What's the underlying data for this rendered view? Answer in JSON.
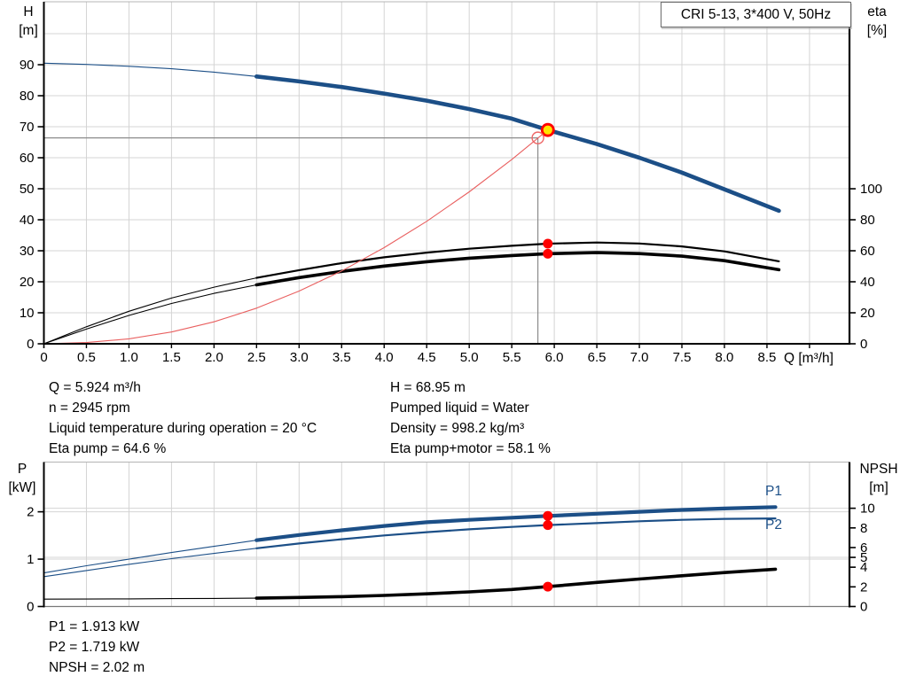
{
  "title_box": "CRI 5-13, 3*400 V, 50Hz",
  "axes": {
    "h": {
      "name": "H",
      "unit": "[m]"
    },
    "eta": {
      "name": "eta",
      "unit": "[%]"
    },
    "p": {
      "name": "P",
      "unit": "[kW]"
    },
    "npsh": {
      "name": "NPSH",
      "unit": "[m]"
    },
    "q_unit": "Q [m³/h]"
  },
  "series_labels": {
    "p1": "P1",
    "p2": "P2"
  },
  "annotations": {
    "duty_left": [
      "Q = 5.924 m³/h",
      "n = 2945 rpm",
      "Liquid temperature during operation = 20 °C",
      "Eta pump = 64.6 %"
    ],
    "duty_right": [
      "H = 68.95 m",
      "Pumped liquid = Water",
      "Density = 998.2 kg/m³",
      "Eta pump+motor = 58.1 %"
    ],
    "power": [
      "P1 = 1.913 kW",
      "P2 = 1.719 kW",
      "NPSH = 2.02 m"
    ]
  },
  "colors": {
    "pump_blue": "#1c4f87",
    "curve_black": "#000000",
    "system_red": "#e96060",
    "marker_red": "#ff0000",
    "duty_yellow": "#ffe400",
    "grid": "#d4d4d4",
    "guide": "#8c8c8c"
  },
  "chart_data": [
    {
      "id": "qh",
      "type": "line",
      "title": "CRI 5-13, 3*400 V, 50Hz",
      "x_axis": {
        "label": "Q [m³/h]",
        "range": [
          0,
          9.47
        ],
        "ticks": [
          {
            "v": 0,
            "l": "0"
          },
          {
            "v": 0.5,
            "l": "0.5"
          },
          {
            "v": 1,
            "l": "1.0"
          },
          {
            "v": 1.5,
            "l": "1.5"
          },
          {
            "v": 2,
            "l": "2.0"
          },
          {
            "v": 2.5,
            "l": "2.5"
          },
          {
            "v": 3,
            "l": "3.0"
          },
          {
            "v": 3.5,
            "l": "3.5"
          },
          {
            "v": 4,
            "l": "4.0"
          },
          {
            "v": 4.5,
            "l": "4.5"
          },
          {
            "v": 5,
            "l": "5.0"
          },
          {
            "v": 5.5,
            "l": "5.5"
          },
          {
            "v": 6,
            "l": "6.0"
          },
          {
            "v": 6.5,
            "l": "6.5"
          },
          {
            "v": 7,
            "l": "7.0"
          },
          {
            "v": 7.5,
            "l": "7.5"
          },
          {
            "v": 8,
            "l": "8.0"
          },
          {
            "v": 8.5,
            "l": "8.5"
          },
          {
            "v": 9,
            "l": ""
          }
        ]
      },
      "y_left": {
        "label": "H [m]",
        "range": [
          0,
          110.3
        ],
        "ticks": [
          {
            "v": 0,
            "l": "0"
          },
          {
            "v": 10,
            "l": "10"
          },
          {
            "v": 20,
            "l": "20"
          },
          {
            "v": 30,
            "l": "30"
          },
          {
            "v": 40,
            "l": "40"
          },
          {
            "v": 50,
            "l": "50"
          },
          {
            "v": 60,
            "l": "60"
          },
          {
            "v": 70,
            "l": "70"
          },
          {
            "v": 80,
            "l": "80"
          },
          {
            "v": 90,
            "l": "90"
          }
        ],
        "gridlines": [
          10,
          20,
          30,
          40,
          50,
          60,
          70,
          80,
          90,
          100
        ]
      },
      "y_right": {
        "label": "eta [%]",
        "range": [
          0,
          220.6
        ],
        "ticks": [
          {
            "v": 0,
            "l": "0"
          },
          {
            "v": 20,
            "l": "20"
          },
          {
            "v": 40,
            "l": "40"
          },
          {
            "v": 60,
            "l": "60"
          },
          {
            "v": 80,
            "l": "80"
          },
          {
            "v": 100,
            "l": "100"
          }
        ],
        "gridlines": []
      },
      "guides": {
        "q": 5.807,
        "h": 66.4
      },
      "series": [
        {
          "name": "pump-curve-h",
          "axis": "left",
          "color": "#1c4f87",
          "width": 4.6,
          "thin_until": 2.5,
          "points": [
            [
              0,
              90.5
            ],
            [
              0.5,
              90.1
            ],
            [
              1,
              89.5
            ],
            [
              1.5,
              88.7
            ],
            [
              2,
              87.6
            ],
            [
              2.5,
              86.2
            ],
            [
              3,
              84.6
            ],
            [
              3.5,
              82.8
            ],
            [
              4,
              80.7
            ],
            [
              4.5,
              78.4
            ],
            [
              5,
              75.7
            ],
            [
              5.5,
              72.6
            ],
            [
              5.924,
              68.95
            ],
            [
              6.5,
              64.4
            ],
            [
              7,
              60.0
            ],
            [
              7.5,
              55.2
            ],
            [
              8,
              49.8
            ],
            [
              8.64,
              42.9
            ]
          ]
        },
        {
          "name": "eta-pump",
          "axis": "right",
          "color": "#000000",
          "width": 2.2,
          "thin_until": 2.5,
          "points": [
            [
              0,
              0
            ],
            [
              0.5,
              11
            ],
            [
              1,
              21
            ],
            [
              1.5,
              29.5
            ],
            [
              2,
              36.5
            ],
            [
              2.5,
              42.5
            ],
            [
              3,
              47.5
            ],
            [
              3.5,
              52
            ],
            [
              4,
              55.8
            ],
            [
              4.5,
              58.8
            ],
            [
              5,
              61.3
            ],
            [
              5.5,
              63.2
            ],
            [
              5.924,
              64.6
            ],
            [
              6.5,
              65.3
            ],
            [
              7,
              64.7
            ],
            [
              7.5,
              62.8
            ],
            [
              8,
              59.6
            ],
            [
              8.64,
              53.2
            ]
          ]
        },
        {
          "name": "eta-pump-motor",
          "axis": "right",
          "color": "#000000",
          "width": 3.6,
          "thin_until": 2.5,
          "points": [
            [
              0,
              0
            ],
            [
              0.5,
              9.5
            ],
            [
              1,
              18.3
            ],
            [
              1.5,
              26
            ],
            [
              2,
              32.5
            ],
            [
              2.5,
              38
            ],
            [
              3,
              42.7
            ],
            [
              3.5,
              46.7
            ],
            [
              4,
              50.1
            ],
            [
              4.5,
              52.9
            ],
            [
              5,
              55.2
            ],
            [
              5.5,
              56.9
            ],
            [
              5.924,
              58.1
            ],
            [
              6.5,
              58.8
            ],
            [
              7,
              58.2
            ],
            [
              7.5,
              56.5
            ],
            [
              8,
              53.6
            ],
            [
              8.64,
              47.8
            ]
          ]
        },
        {
          "name": "system-curve",
          "axis": "left",
          "color": "#e96060",
          "width": 1.1,
          "points": [
            [
              0,
              0
            ],
            [
              0.5,
              0.4
            ],
            [
              1,
              1.6
            ],
            [
              1.5,
              3.8
            ],
            [
              2,
              7.1
            ],
            [
              2.5,
              11.5
            ],
            [
              3,
              17
            ],
            [
              3.5,
              23.5
            ],
            [
              4,
              31
            ],
            [
              4.5,
              39.5
            ],
            [
              5,
              49
            ],
            [
              5.5,
              59.4
            ],
            [
              5.924,
              68.95
            ]
          ]
        }
      ],
      "markers": [
        {
          "name": "duty-point",
          "shape": "duty",
          "axis": "left",
          "q": 5.924,
          "v": 68.95,
          "fill": "#ffe400",
          "stroke": "#ff0000"
        },
        {
          "name": "requested-duty-ring",
          "shape": "ring",
          "axis": "left",
          "q": 5.807,
          "v": 66.4,
          "stroke": "#ee6666"
        },
        {
          "name": "eta-pump-dot",
          "shape": "dot",
          "axis": "right",
          "q": 5.924,
          "v": 64.6,
          "fill": "#ff0000"
        },
        {
          "name": "eta-pump-motor-dot",
          "shape": "dot",
          "axis": "right",
          "q": 5.924,
          "v": 58.1,
          "fill": "#ff0000"
        }
      ]
    },
    {
      "id": "power",
      "type": "line",
      "x_axis": {
        "label": "",
        "range": [
          0,
          9.47
        ],
        "ticks": [
          {
            "v": 0.5,
            "l": ""
          },
          {
            "v": 1,
            "l": ""
          },
          {
            "v": 1.5,
            "l": ""
          },
          {
            "v": 2,
            "l": ""
          },
          {
            "v": 2.5,
            "l": ""
          },
          {
            "v": 3,
            "l": ""
          },
          {
            "v": 3.5,
            "l": ""
          },
          {
            "v": 4,
            "l": ""
          },
          {
            "v": 4.5,
            "l": ""
          },
          {
            "v": 5,
            "l": ""
          },
          {
            "v": 5.5,
            "l": ""
          },
          {
            "v": 6,
            "l": ""
          },
          {
            "v": 6.5,
            "l": ""
          },
          {
            "v": 7,
            "l": ""
          },
          {
            "v": 7.5,
            "l": ""
          },
          {
            "v": 8,
            "l": ""
          },
          {
            "v": 8.5,
            "l": ""
          },
          {
            "v": 9,
            "l": ""
          }
        ]
      },
      "y_left": {
        "label": "P [kW]",
        "range": [
          0,
          3.05
        ],
        "ticks": [
          {
            "v": 0,
            "l": "0"
          },
          {
            "v": 1,
            "l": "1"
          },
          {
            "v": 2,
            "l": "2"
          }
        ],
        "gridlines": [
          1,
          2
        ]
      },
      "y_right": {
        "label": "NPSH [m]",
        "range": [
          0,
          14.7
        ],
        "ticks": [
          {
            "v": 0,
            "l": "0"
          },
          {
            "v": 2,
            "l": "2"
          },
          {
            "v": 4,
            "l": "4"
          },
          {
            "v": 5,
            "l": "5"
          },
          {
            "v": 6,
            "l": "6"
          },
          {
            "v": 8,
            "l": "8"
          },
          {
            "v": 10,
            "l": "10"
          }
        ],
        "gridlines": [
          5,
          10
        ]
      },
      "series": [
        {
          "name": "p1-curve",
          "axis": "left",
          "color": "#1c4f87",
          "width": 4.2,
          "thin_until": 2.5,
          "points": [
            [
              0,
              0.71
            ],
            [
              0.5,
              0.86
            ],
            [
              1,
              1.0
            ],
            [
              1.5,
              1.14
            ],
            [
              2,
              1.27
            ],
            [
              2.5,
              1.4
            ],
            [
              3,
              1.51
            ],
            [
              3.5,
              1.61
            ],
            [
              4,
              1.7
            ],
            [
              4.5,
              1.78
            ],
            [
              5,
              1.83
            ],
            [
              5.5,
              1.875
            ],
            [
              5.924,
              1.913
            ],
            [
              6.5,
              1.96
            ],
            [
              7,
              2.0
            ],
            [
              7.5,
              2.04
            ],
            [
              8,
              2.07
            ],
            [
              8.6,
              2.1
            ]
          ]
        },
        {
          "name": "p2-curve",
          "axis": "left",
          "color": "#1c4f87",
          "width": 2.2,
          "thin_until": 2.5,
          "points": [
            [
              0,
              0.63
            ],
            [
              0.5,
              0.76
            ],
            [
              1,
              0.89
            ],
            [
              1.5,
              1.01
            ],
            [
              2,
              1.12
            ],
            [
              2.5,
              1.23
            ],
            [
              3,
              1.33
            ],
            [
              3.5,
              1.42
            ],
            [
              4,
              1.5
            ],
            [
              4.5,
              1.57
            ],
            [
              5,
              1.63
            ],
            [
              5.5,
              1.68
            ],
            [
              5.924,
              1.719
            ],
            [
              6.5,
              1.76
            ],
            [
              7,
              1.8
            ],
            [
              7.5,
              1.83
            ],
            [
              8,
              1.85
            ],
            [
              8.6,
              1.86
            ]
          ]
        },
        {
          "name": "npsh-curve",
          "axis": "right",
          "color": "#000000",
          "width": 3.6,
          "thin_until": 2.5,
          "points": [
            [
              0,
              0.75
            ],
            [
              0.5,
              0.76
            ],
            [
              1,
              0.78
            ],
            [
              1.5,
              0.8
            ],
            [
              2,
              0.82
            ],
            [
              2.5,
              0.85
            ],
            [
              3,
              0.92
            ],
            [
              3.5,
              1.0
            ],
            [
              4,
              1.13
            ],
            [
              4.5,
              1.29
            ],
            [
              5,
              1.49
            ],
            [
              5.5,
              1.73
            ],
            [
              5.924,
              2.02
            ],
            [
              6.5,
              2.45
            ],
            [
              7,
              2.8
            ],
            [
              7.5,
              3.13
            ],
            [
              8,
              3.45
            ],
            [
              8.6,
              3.8
            ]
          ]
        }
      ],
      "markers": [
        {
          "name": "p1-dot",
          "shape": "dot",
          "axis": "left",
          "q": 5.924,
          "v": 1.913,
          "fill": "#ff0000"
        },
        {
          "name": "p2-dot",
          "shape": "dot",
          "axis": "left",
          "q": 5.924,
          "v": 1.719,
          "fill": "#ff0000"
        },
        {
          "name": "npsh-dot",
          "shape": "dot",
          "axis": "right",
          "q": 5.924,
          "v": 2.02,
          "fill": "#ff0000"
        }
      ]
    }
  ]
}
